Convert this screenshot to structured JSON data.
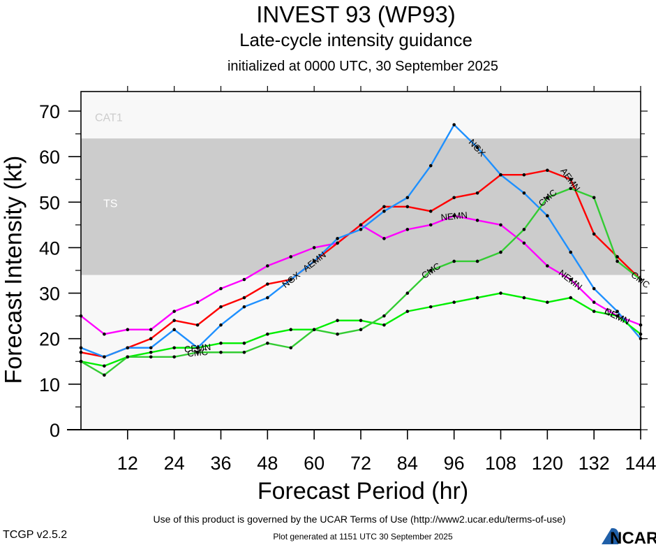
{
  "header": {
    "title": "INVEST 93 (WP93)",
    "subtitle": "Late-cycle intensity guidance",
    "initialized": "initialized at 0000 UTC, 30 September 2025"
  },
  "footer": {
    "terms": "Use of this product is governed by the UCAR Terms of Use (http://www2.ucar.edu/terms-of-use)",
    "generated": "Plot generated at 1151 UTC   30 September 2025",
    "version": "TCGP v2.5.2",
    "logo_text": "NCAR"
  },
  "chart_data": {
    "type": "line",
    "title": "INVEST 93 (WP93)",
    "subtitle": "Late-cycle intensity guidance",
    "xlabel": "Forecast Period (hr)",
    "ylabel": "Forecast Intensity (kt)",
    "xlim": [
      0,
      144
    ],
    "ylim": [
      0,
      70
    ],
    "xticks": [
      12,
      24,
      36,
      48,
      60,
      72,
      84,
      96,
      108,
      120,
      132,
      144
    ],
    "yticks": [
      0,
      10,
      20,
      30,
      40,
      50,
      60,
      70
    ],
    "grid": false,
    "legend": "inline labels on lines",
    "bands": [
      {
        "label": "TS",
        "from": 34,
        "to": 64,
        "color": "#cccccc",
        "label_color": "#ffffff"
      },
      {
        "label": "CAT1",
        "from": 64,
        "to": 83,
        "color": "#f8f8f8",
        "label_color": "#cccccc"
      }
    ],
    "x": [
      0,
      6,
      12,
      18,
      24,
      30,
      36,
      42,
      48,
      54,
      60,
      66,
      72,
      78,
      84,
      90,
      96,
      102,
      108,
      114,
      120,
      126,
      132,
      138,
      144
    ],
    "series": [
      {
        "name": "NEMN",
        "color": "#ff00ff",
        "values": [
          25,
          21,
          22,
          22,
          26,
          28,
          31,
          33,
          36,
          38,
          40,
          41,
          45,
          42,
          44,
          45,
          47,
          46,
          45,
          41,
          36,
          33,
          28,
          25,
          23
        ],
        "label_at": [
          27,
          57,
          96,
          126,
          138
        ]
      },
      {
        "name": "AEMN",
        "color": "#ff0000",
        "values": [
          17,
          16,
          18,
          20,
          24,
          23,
          27,
          29,
          32,
          33,
          37,
          41,
          45,
          49,
          49,
          48,
          51,
          52,
          56,
          56,
          57,
          55,
          43,
          38,
          33
        ],
        "label_at": [
          27,
          60,
          93,
          126
        ]
      },
      {
        "name": "NGX",
        "color": "#1e90ff",
        "values": [
          18,
          16,
          18,
          18,
          22,
          18,
          23,
          27,
          29,
          33,
          37,
          42,
          44,
          48,
          51,
          58,
          67,
          62,
          56,
          52,
          47,
          39,
          31,
          26,
          20
        ],
        "label_at": [
          27,
          54,
          81,
          102,
          135
        ]
      },
      {
        "name": "CEMN",
        "color": "#00ee00",
        "values": [
          15,
          14,
          16,
          17,
          18,
          18,
          19,
          19,
          21,
          22,
          22,
          24,
          24,
          23,
          26,
          27,
          28,
          29,
          30,
          29,
          28,
          29,
          26,
          25,
          21
        ],
        "label_at": [
          30,
          69,
          105,
          138
        ]
      },
      {
        "name": "CMC",
        "color": "#33cc33",
        "values": [
          15,
          12,
          16,
          16,
          16,
          17,
          17,
          17,
          19,
          18,
          22,
          21,
          22,
          25,
          30,
          35,
          37,
          37,
          39,
          44,
          51,
          53,
          51,
          37,
          33
        ],
        "label_at": [
          30,
          63,
          90,
          120,
          144
        ]
      }
    ]
  }
}
